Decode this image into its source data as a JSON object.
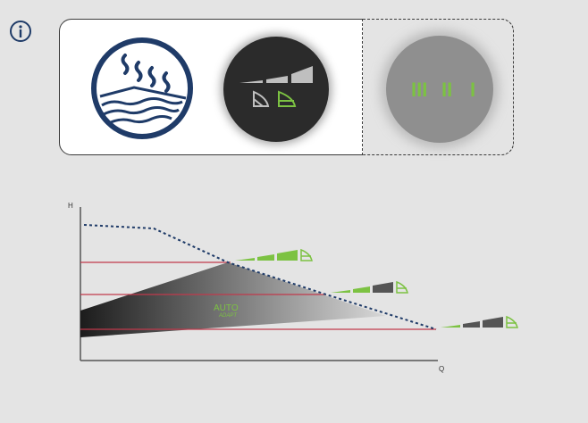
{
  "icons": {
    "info": "info-icon",
    "floor": "underfloor-heating-icon",
    "auto": "autoadapt-icon",
    "speed": "constant-speed-icon"
  },
  "colors": {
    "background": "#e4e4e4",
    "navy": "#1f3b68",
    "green": "#7cc242",
    "red": "#c0394b",
    "dark": "#2b2b2b",
    "grey": "#8f8f8f"
  },
  "speed_button": {
    "marks": [
      "III",
      "II",
      "I"
    ]
  },
  "diagram": {
    "axis_y": "H",
    "axis_x": "Q",
    "auto_label": "AUTO",
    "adapt_label": "ADAPT"
  }
}
